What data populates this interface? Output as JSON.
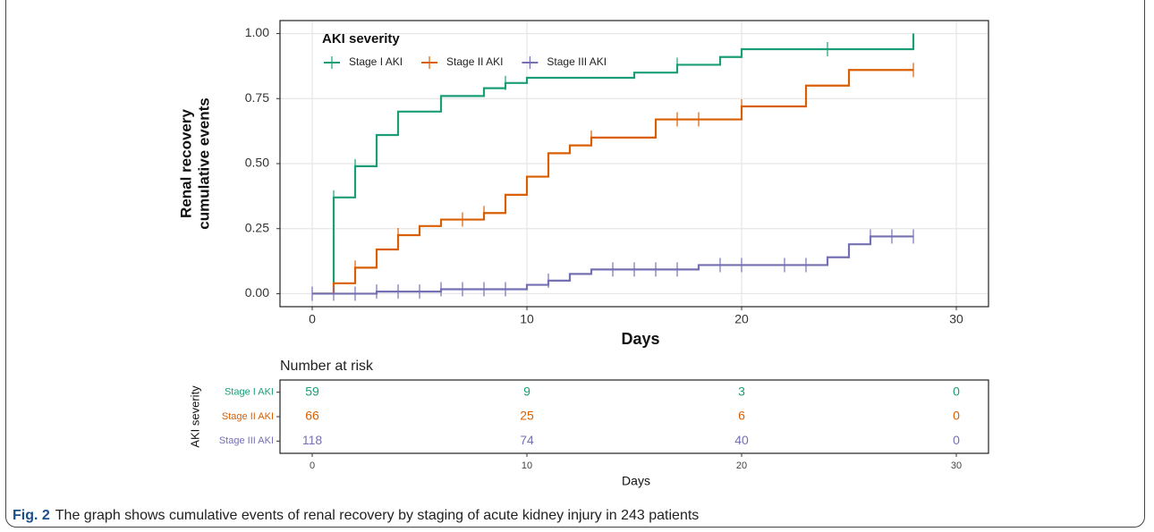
{
  "chart_data": [
    {
      "type": "step",
      "ylabel": [
        "Renal recovery",
        "cumulative events"
      ],
      "xlabel": "Days",
      "legend_title": "AKI severity",
      "legend": "top-left",
      "grid": true,
      "xlim": [
        -1.5,
        31.5
      ],
      "xticks": [
        0,
        10,
        20,
        30
      ],
      "ylim": [
        -0.05,
        1.05
      ],
      "yticks": [
        {
          "value": 0,
          "label": "0.00"
        },
        {
          "value": 0.25,
          "label": "0.25"
        },
        {
          "value": 0.5,
          "label": "0.50"
        },
        {
          "value": 0.75,
          "label": "0.75"
        },
        {
          "value": 1,
          "label": "1.00"
        }
      ],
      "series": [
        {
          "name": "Stage I AKI",
          "color": "#1b9e77",
          "x": [
            0,
            1,
            2,
            3,
            4,
            6,
            8,
            9,
            10,
            15,
            17,
            19,
            20,
            28
          ],
          "values": [
            0,
            0.37,
            0.49,
            0.61,
            0.7,
            0.76,
            0.79,
            0.81,
            0.83,
            0.85,
            0.88,
            0.91,
            0.94,
            1.0
          ],
          "censored": {
            "x": [
              1,
              2,
              9,
              17,
              24
            ],
            "values": [
              0.37,
              0.49,
              0.81,
              0.88,
              0.94
            ]
          }
        },
        {
          "name": "Stage II AKI",
          "color": "#d95f02",
          "x": [
            0,
            1,
            2,
            3,
            4,
            5,
            6,
            8,
            9,
            10,
            11,
            12,
            13,
            16,
            20,
            23,
            25,
            28
          ],
          "values": [
            0,
            0.04,
            0.1,
            0.17,
            0.225,
            0.26,
            0.285,
            0.31,
            0.38,
            0.45,
            0.54,
            0.57,
            0.6,
            0.67,
            0.72,
            0.8,
            0.86,
            0.86
          ],
          "censored": {
            "x": [
              2,
              4,
              7,
              8,
              13,
              17,
              18,
              20,
              28
            ],
            "values": [
              0.1,
              0.225,
              0.285,
              0.31,
              0.6,
              0.67,
              0.67,
              0.72,
              0.86
            ]
          }
        },
        {
          "name": "Stage III AKI",
          "color": "#7570b3",
          "x": [
            0,
            3,
            6,
            10,
            11,
            12,
            13,
            18,
            24,
            25,
            26,
            28
          ],
          "values": [
            0,
            0.008,
            0.017,
            0.034,
            0.05,
            0.076,
            0.093,
            0.11,
            0.14,
            0.19,
            0.22,
            0.22
          ],
          "censored": {
            "x": [
              0,
              1,
              2,
              3,
              4,
              5,
              6,
              7,
              8,
              9,
              11,
              14,
              15,
              16,
              17,
              19,
              20,
              22,
              23,
              26,
              27,
              28
            ],
            "values": [
              0,
              0,
              0,
              0.008,
              0.008,
              0.008,
              0.017,
              0.017,
              0.017,
              0.017,
              0.05,
              0.093,
              0.093,
              0.093,
              0.093,
              0.11,
              0.11,
              0.11,
              0.11,
              0.22,
              0.22,
              0.22
            ]
          }
        }
      ]
    },
    {
      "type": "table",
      "title": "Number at risk",
      "ylabel": "AKI severity",
      "xlabel": "Days",
      "xlim": [
        -1.5,
        31.5
      ],
      "xticks": [
        0,
        10,
        20,
        30
      ],
      "series": [
        {
          "name": "Stage I AKI",
          "color": "#1b9e77",
          "values": [
            59,
            9,
            3,
            0
          ]
        },
        {
          "name": "Stage II AKI",
          "color": "#d95f02",
          "values": [
            66,
            25,
            6,
            0
          ]
        },
        {
          "name": "Stage III AKI",
          "color": "#7570b3",
          "values": [
            118,
            74,
            40,
            0
          ]
        }
      ]
    }
  ],
  "caption": {
    "label": "Fig. 2",
    "text": "The graph shows cumulative events of renal recovery by staging of acute kidney injury in 243 patients"
  }
}
